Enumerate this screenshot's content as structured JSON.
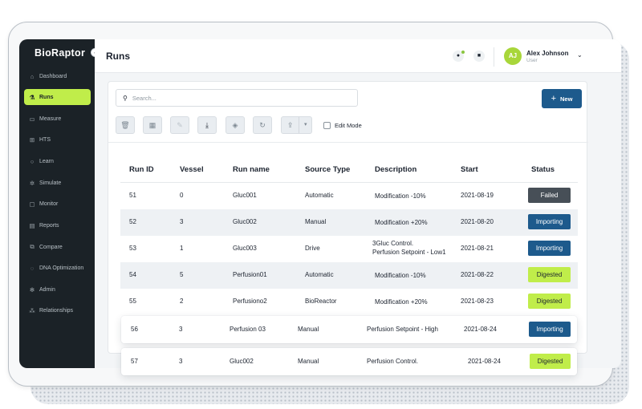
{
  "sidebar": {
    "logo": "BioRaptor",
    "collapse_icon": "chevron-left-icon",
    "items": [
      {
        "label": "Dashboard",
        "icon": "home-icon"
      },
      {
        "label": "Runs",
        "icon": "flask-icon",
        "active": true
      },
      {
        "label": "Measure",
        "icon": "ruler-icon"
      },
      {
        "label": "HTS",
        "icon": "grid-icon"
      },
      {
        "label": "Learn",
        "icon": "bulb-icon"
      },
      {
        "label": "Simulate",
        "icon": "gear-icon"
      },
      {
        "label": "Monitor",
        "icon": "monitor-icon"
      },
      {
        "label": "Reports",
        "icon": "chart-icon"
      },
      {
        "label": "Compare",
        "icon": "compare-icon"
      },
      {
        "label": "DNA Optimization",
        "icon": "dna-icon"
      },
      {
        "label": "Admin",
        "icon": "settings-icon"
      },
      {
        "label": "Relationships",
        "icon": "relations-icon"
      }
    ]
  },
  "header": {
    "title": "Runs",
    "notification_icon": "bell-icon",
    "message_icon": "chat-icon",
    "user": {
      "initials": "AJ",
      "name": "Alex Johnson",
      "role": "User"
    }
  },
  "toolbar": {
    "search_placeholder": "Search...",
    "new_label": "New",
    "edit_mode_label": "Edit Mode",
    "edit_mode_checked": false,
    "tools": [
      "trash-icon",
      "clipboard-search-icon",
      "edit-icon",
      "download-icon",
      "tag-icon",
      "refresh-icon",
      "export-icon"
    ]
  },
  "table": {
    "columns": [
      "Run ID",
      "Vessel",
      "Run name",
      "Source Type",
      "Description",
      "Start",
      "Status"
    ],
    "rows": [
      {
        "id": "51",
        "vessel": "0",
        "name": "Gluc001",
        "source": "Automatic",
        "desc": "Modification -10%",
        "start": "2021-08-19",
        "status": "Failed"
      },
      {
        "id": "52",
        "vessel": "3",
        "name": "Gluc002",
        "source": "Manual",
        "desc": "Modification +20%",
        "start": "2021-08-20",
        "status": "Importing"
      },
      {
        "id": "53",
        "vessel": "1",
        "name": "Gluc003",
        "source": "Drive",
        "desc_line1": "3Gluc Control.",
        "desc_line2": "Perfusion Setpoint - Low1",
        "start": "2021-08-21",
        "status": "Importing"
      },
      {
        "id": "54",
        "vessel": "5",
        "name": "Perfusion01",
        "source": "Automatic",
        "desc": "Modification -10%",
        "start": "2021-08-22",
        "status": "Digested"
      },
      {
        "id": "55",
        "vessel": "2",
        "name": "Perfusiono2",
        "source": "BioReactor",
        "desc": "Modification +20%",
        "start": "2021-08-23",
        "status": "Digested"
      },
      {
        "id": "56",
        "vessel": "3",
        "name": "Perfusion 03",
        "source": "Manual",
        "desc": "Perfusion Setpoint - High",
        "start": "2021-08-24",
        "status": "Importing"
      },
      {
        "id": "57",
        "vessel": "3",
        "name": "Gluc002",
        "source": "Manual",
        "desc": "Perfusion Control.",
        "start": "2021-08-24",
        "status": "Digested"
      }
    ]
  },
  "colors": {
    "sidebar_bg": "#1b2227",
    "accent_lime": "#c0ed4a",
    "primary_blue": "#1d5a8c",
    "failed_gray": "#474f57"
  }
}
